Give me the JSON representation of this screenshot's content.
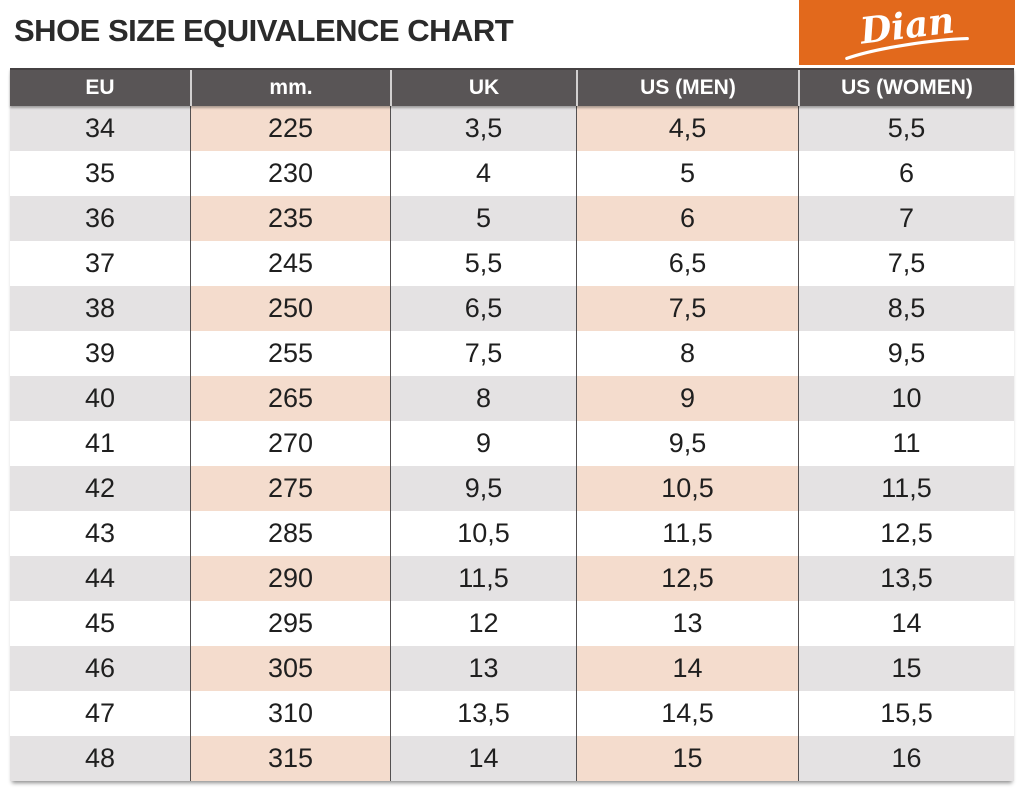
{
  "page": {
    "title": "SHOE SIZE EQUIVALENCE CHART",
    "brand": "Dian"
  },
  "icons": {
    "logo_underline_swash": "brand signature underline flourish"
  },
  "colors": {
    "accent_orange": "#e2691c",
    "header_bg": "#595556",
    "stripe_gray": "#e4e2e3",
    "stripe_pink": "#f4dccd",
    "title_text": "#2b2b2b",
    "body_text": "#1f1f1f",
    "header_text": "#ffffff",
    "logo_text": "#ffffff"
  },
  "chart_data": {
    "type": "table",
    "title": "SHOE SIZE EQUIVALENCE CHART",
    "columns": [
      "EU",
      "mm.",
      "UK",
      "US (MEN)",
      "US (WOMEN)"
    ],
    "rows": [
      [
        "34",
        "225",
        "3,5",
        "4,5",
        "5,5"
      ],
      [
        "35",
        "230",
        "4",
        "5",
        "6"
      ],
      [
        "36",
        "235",
        "5",
        "6",
        "7"
      ],
      [
        "37",
        "245",
        "5,5",
        "6,5",
        "7,5"
      ],
      [
        "38",
        "250",
        "6,5",
        "7,5",
        "8,5"
      ],
      [
        "39",
        "255",
        "7,5",
        "8",
        "9,5"
      ],
      [
        "40",
        "265",
        "8",
        "9",
        "10"
      ],
      [
        "41",
        "270",
        "9",
        "9,5",
        "11"
      ],
      [
        "42",
        "275",
        "9,5",
        "10,5",
        "11,5"
      ],
      [
        "43",
        "285",
        "10,5",
        "11,5",
        "12,5"
      ],
      [
        "44",
        "290",
        "11,5",
        "12,5",
        "13,5"
      ],
      [
        "45",
        "295",
        "12",
        "13",
        "14"
      ],
      [
        "46",
        "305",
        "13",
        "14",
        "15"
      ],
      [
        "47",
        "310",
        "13,5",
        "14,5",
        "15,5"
      ],
      [
        "48",
        "315",
        "14",
        "15",
        "16"
      ]
    ],
    "layout": {
      "stripe_pattern": "odd rows striped starting with first data row",
      "tinted_columns_on_striped_rows": [
        "mm.",
        "US (MEN)"
      ],
      "gridlines": "vertical only"
    }
  }
}
